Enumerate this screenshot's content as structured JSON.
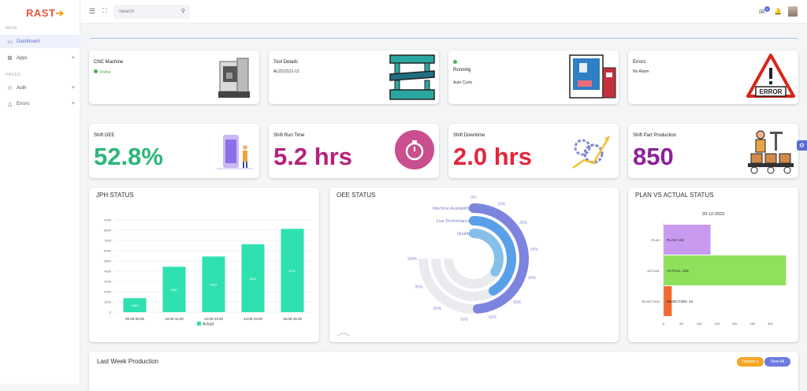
{
  "app": {
    "logo_main": "RAST",
    "logo_accent": "🡆"
  },
  "sidebar": {
    "section_main": "MAIN",
    "section_pages": "PAGES",
    "items": [
      {
        "label": "Dashboard",
        "icon": "monitor-icon"
      },
      {
        "label": "Apps",
        "icon": "command-icon"
      },
      {
        "label": "Auth",
        "icon": "user-add-icon"
      },
      {
        "label": "Errors",
        "icon": "alert-icon"
      }
    ]
  },
  "topbar": {
    "search_placeholder": "Search",
    "notification_count": "0"
  },
  "status_cards": [
    {
      "title": "CNC Machine",
      "status": "Online",
      "status_color": "#4caf50",
      "illustration": "cnc-machine-icon"
    },
    {
      "title": "Tool Details",
      "value": "AL2212121-12",
      "illustration": "press-tool-icon"
    },
    {
      "title": "Running",
      "value": "Auto Cycle",
      "status_color": "#4caf50",
      "illustration": "3d-printer-icon"
    },
    {
      "title": "Errors",
      "value": "No Alarm",
      "illustration": "error-warning-icon",
      "error_label": "ERROR"
    }
  ],
  "kpi_cards": [
    {
      "title": "Shift OEE",
      "value": "52.8%",
      "color": "#2db57a",
      "illustration": "phone-person-icon"
    },
    {
      "title": "Shift Run Time",
      "value": "5.2 hrs",
      "color": "#b3237c",
      "illustration": "stopwatch-icon"
    },
    {
      "title": "Shift Downtime",
      "value": "2.0 hrs",
      "color": "#e3263c",
      "illustration": "gears-chart-icon"
    },
    {
      "title": "Shift Part Production",
      "value": "850",
      "color": "#8e1f9c",
      "illustration": "conveyor-worker-icon"
    }
  ],
  "jph": {
    "title": "JPH STATUS",
    "chart_data": {
      "type": "bar",
      "categories": [
        "00:00-00:00",
        "10:00-11:00",
        "12:00-13:00",
        "14:00-15:00",
        "16:00-16:30"
      ],
      "series": [
        {
          "name": "Actual",
          "values": [
            1363,
            4432,
            5432,
            6632,
            8131
          ]
        }
      ],
      "data_labels": [
        "1363",
        "4432",
        "5432",
        "6632",
        "8131"
      ],
      "yticks": [
        "0",
        "1000",
        "2000",
        "3000",
        "4000",
        "5000",
        "6000",
        "7000",
        "8000",
        "9000"
      ],
      "ylim": [
        0,
        9000
      ],
      "legend": "bottom",
      "color": "#2fe0b0"
    }
  },
  "oee": {
    "title": "OEE STATUS",
    "chart_data": {
      "type": "radial-bar",
      "series": [
        {
          "name": "Machine Availability",
          "value": 65,
          "color": "#7c84de"
        },
        {
          "name": "Live Performance",
          "value": 55,
          "color": "#5aa0e8"
        },
        {
          "name": "Quality",
          "value": 45,
          "color": "#86c0ea"
        }
      ],
      "ticks": [
        "0%",
        "10%",
        "20%",
        "30%",
        "40%",
        "50%",
        "60%",
        "70%",
        "80%",
        "90%",
        "100%"
      ]
    }
  },
  "plan": {
    "title": "PLAN VS ACTUAL STATUS",
    "chart_data": {
      "type": "bar",
      "orientation": "horizontal",
      "title": "20-12-2023",
      "categories": [
        "PLAN",
        "ACTUAL",
        "REJECTION"
      ],
      "values": [
        132,
        344,
        23
      ],
      "bar_labels": [
        "PLAN: 132",
        "ACTUAL: 344",
        "REJECTION: 23"
      ],
      "colors": [
        "#c79af0",
        "#8fe05b",
        "#f26b2e"
      ],
      "xticks": [
        "0",
        "50",
        "100",
        "150",
        "200",
        "250",
        "300"
      ],
      "xlim": [
        0,
        350
      ]
    }
  },
  "last_week": {
    "title": "Last Week Production",
    "options_label": "Options ▾",
    "view_all_label": "View All"
  }
}
